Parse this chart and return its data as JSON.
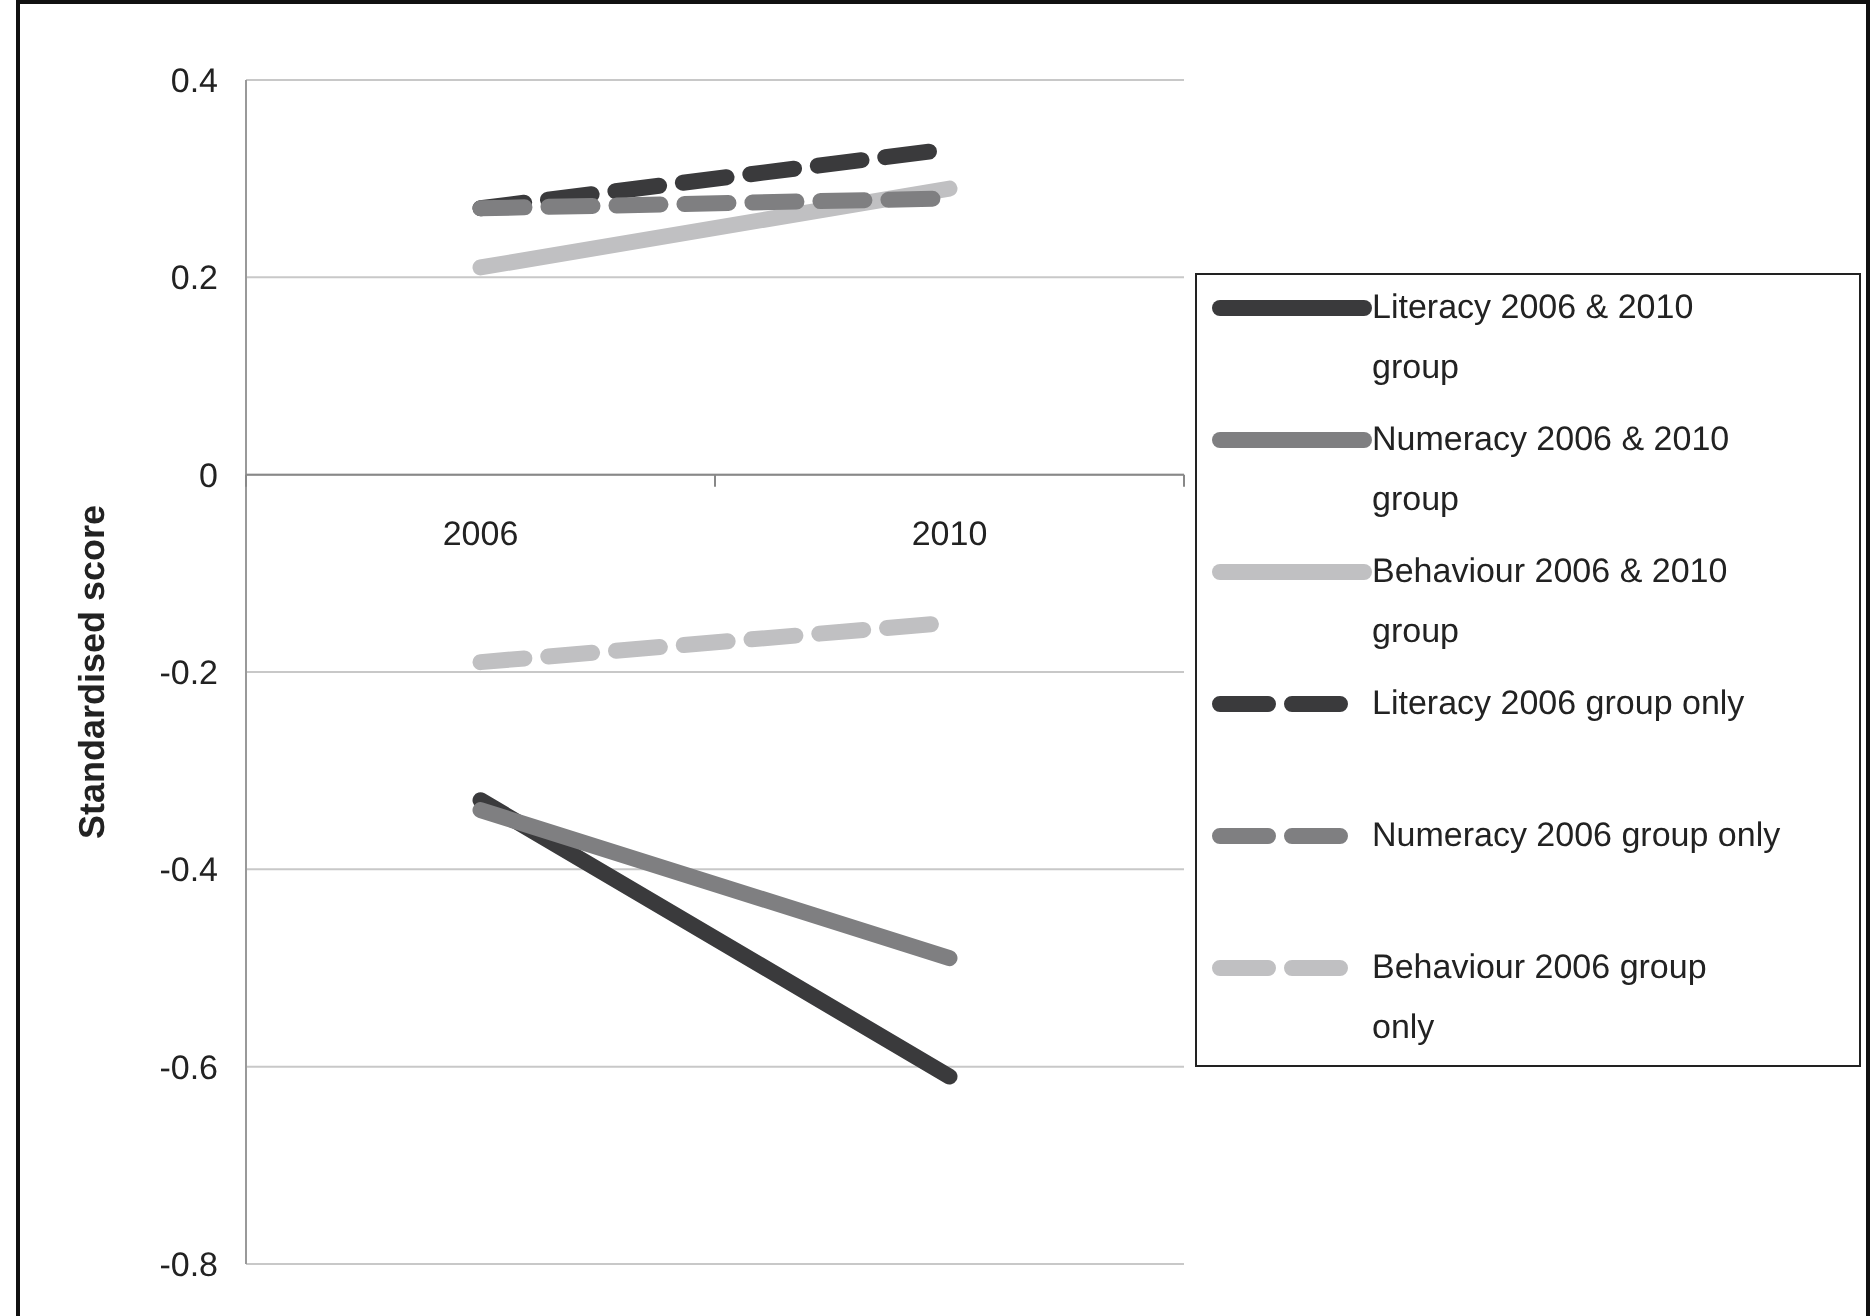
{
  "chart_data": {
    "type": "line",
    "ylabel": "Standardised score",
    "categories": [
      "2006",
      "2010"
    ],
    "ylim": [
      -0.8,
      0.4
    ],
    "yticks": [
      -0.8,
      -0.6,
      -0.4,
      -0.2,
      0,
      0.2,
      0.4
    ],
    "grid": "y",
    "legend": "right",
    "marker": "none",
    "series": [
      {
        "name": "Literacy 2006 & 2010 group",
        "color": "#3a3a3c",
        "values": [
          -0.33,
          -0.61
        ],
        "line_style": "solid"
      },
      {
        "name": "Numeracy 2006 & 2010 group",
        "color": "#7f7f81",
        "values": [
          -0.34,
          -0.49
        ],
        "line_style": "solid"
      },
      {
        "name": "Behaviour 2006 & 2010 group",
        "color": "#c0c0c2",
        "values": [
          0.21,
          0.29
        ],
        "line_style": "solid"
      },
      {
        "name": "Literacy 2006 group only",
        "color": "#3a3a3c",
        "values": [
          0.27,
          0.33
        ],
        "line_style": "dashed"
      },
      {
        "name": "Numeracy 2006 group only",
        "color": "#7f7f81",
        "values": [
          0.27,
          0.28
        ],
        "line_style": "dashed"
      },
      {
        "name": "Behaviour 2006 group only",
        "color": "#c0c0c2",
        "values": [
          -0.19,
          -0.15
        ],
        "line_style": "dashed"
      }
    ]
  }
}
